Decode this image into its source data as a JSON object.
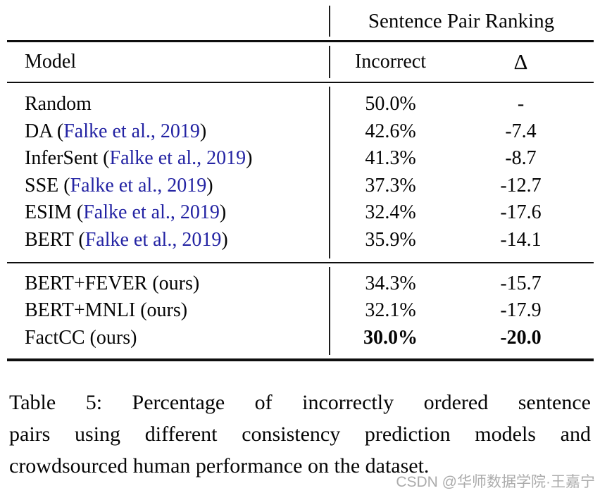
{
  "table": {
    "group_header": "Sentence Pair Ranking",
    "columns": {
      "model": "Model",
      "incorrect": "Incorrect",
      "delta": "Δ"
    },
    "baseline_rows": [
      {
        "model_prefix": "Random",
        "citation": "",
        "model_suffix": "",
        "incorrect": "50.0%",
        "delta": "-"
      },
      {
        "model_prefix": "DA (",
        "citation": "Falke et al., 2019",
        "model_suffix": ")",
        "incorrect": "42.6%",
        "delta": "-7.4"
      },
      {
        "model_prefix": "InferSent (",
        "citation": "Falke et al., 2019",
        "model_suffix": ")",
        "incorrect": "41.3%",
        "delta": "-8.7"
      },
      {
        "model_prefix": "SSE (",
        "citation": "Falke et al., 2019",
        "model_suffix": ")",
        "incorrect": "37.3%",
        "delta": "-12.7"
      },
      {
        "model_prefix": "ESIM (",
        "citation": "Falke et al., 2019",
        "model_suffix": ")",
        "incorrect": "32.4%",
        "delta": "-17.6"
      },
      {
        "model_prefix": "BERT (",
        "citation": "Falke et al., 2019",
        "model_suffix": ")",
        "incorrect": "35.9%",
        "delta": "-14.1"
      }
    ],
    "ours_rows": [
      {
        "model_prefix": "BERT+FEVER (ours)",
        "citation": "",
        "model_suffix": "",
        "incorrect": "34.3%",
        "delta": "-15.7"
      },
      {
        "model_prefix": "BERT+MNLI (ours)",
        "citation": "",
        "model_suffix": "",
        "incorrect": "32.1%",
        "delta": "-17.9"
      },
      {
        "model_prefix": "FactCC (ours)",
        "citation": "",
        "model_suffix": "",
        "incorrect": "30.0%",
        "delta": "-20.0"
      }
    ]
  },
  "caption": {
    "lines": [
      "Table 5:  Percentage of incorrectly ordered sentence",
      "pairs using different consistency prediction models and",
      "crowdsourced human performance on the dataset."
    ]
  },
  "watermark": "CSDN @华师数据学院·王嘉宁",
  "colors": {
    "citation_link": "#2323a3",
    "watermark_gray": "#ababab",
    "text": "#050505",
    "rule": "#0e0e0e"
  }
}
